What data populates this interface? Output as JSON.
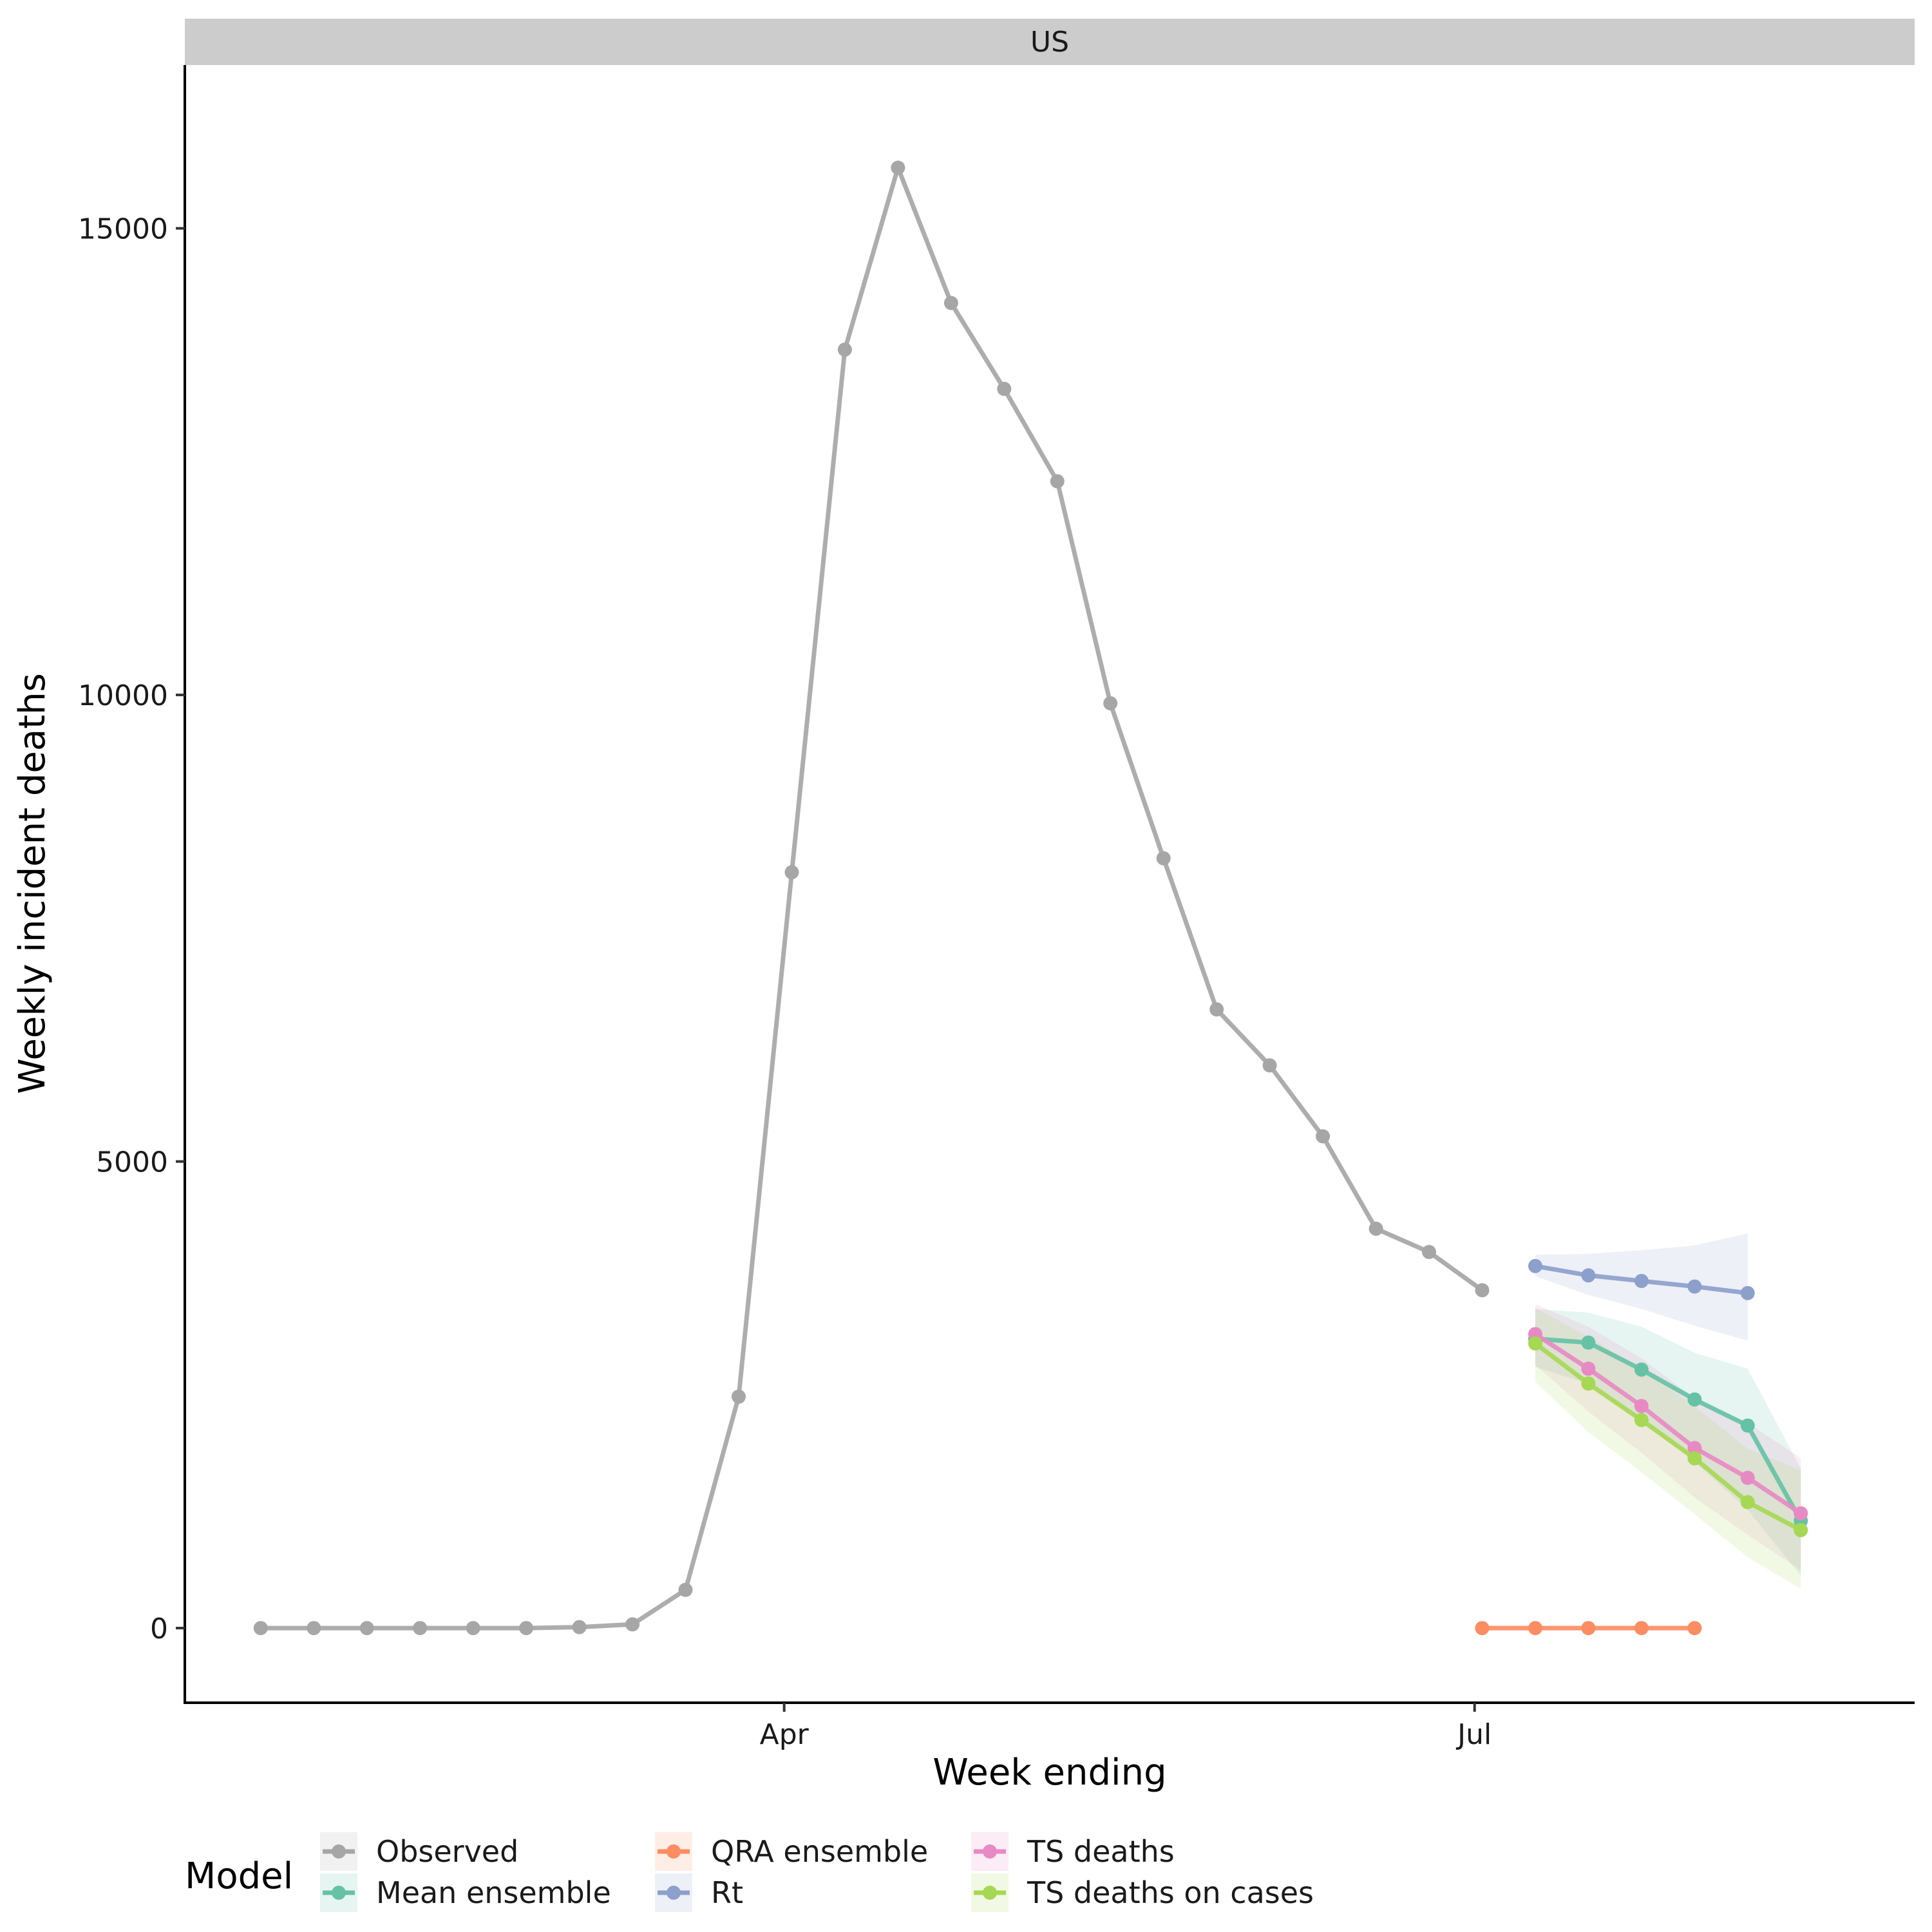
{
  "chart_data": {
    "type": "line",
    "facet_label": "US",
    "xlabel": "Week ending",
    "ylabel": "Weekly incident deaths",
    "x_ticks": [
      {
        "label": "Apr",
        "date": "2020-04-01"
      },
      {
        "label": "Jul",
        "date": "2020-07-01"
      }
    ],
    "y_ticks": [
      0,
      5000,
      10000,
      15000
    ],
    "xlim": [
      "2020-01-13",
      "2020-08-28"
    ],
    "ylim": [
      -800,
      16750
    ],
    "grid": false,
    "legend": {
      "title": "Model",
      "position": "bottom",
      "entries": [
        {
          "label": "Observed",
          "color": "#A6A6A6"
        },
        {
          "label": "Mean ensemble",
          "color": "#66C2A5"
        },
        {
          "label": "QRA ensemble",
          "color": "#FC8D62"
        },
        {
          "label": "Rt",
          "color": "#8DA0CB"
        },
        {
          "label": "TS deaths",
          "color": "#E78AC3"
        },
        {
          "label": "TS deaths on cases",
          "color": "#A6D854"
        }
      ]
    },
    "series": [
      {
        "name": "Observed",
        "color": "#A6A6A6",
        "points": [
          {
            "x": "2020-01-23",
            "y": 0
          },
          {
            "x": "2020-01-30",
            "y": 0
          },
          {
            "x": "2020-02-06",
            "y": 0
          },
          {
            "x": "2020-02-13",
            "y": 0
          },
          {
            "x": "2020-02-20",
            "y": 0
          },
          {
            "x": "2020-02-27",
            "y": 0
          },
          {
            "x": "2020-03-05",
            "y": 10
          },
          {
            "x": "2020-03-12",
            "y": 40
          },
          {
            "x": "2020-03-19",
            "y": 410
          },
          {
            "x": "2020-03-26",
            "y": 2480
          },
          {
            "x": "2020-04-02",
            "y": 8100
          },
          {
            "x": "2020-04-09",
            "y": 13700
          },
          {
            "x": "2020-04-16",
            "y": 15650
          },
          {
            "x": "2020-04-23",
            "y": 14200
          },
          {
            "x": "2020-04-30",
            "y": 13280
          },
          {
            "x": "2020-05-07",
            "y": 12290
          },
          {
            "x": "2020-05-14",
            "y": 9910
          },
          {
            "x": "2020-05-21",
            "y": 8250
          },
          {
            "x": "2020-05-28",
            "y": 6630
          },
          {
            "x": "2020-06-04",
            "y": 6030
          },
          {
            "x": "2020-06-11",
            "y": 5270
          },
          {
            "x": "2020-06-18",
            "y": 4280
          },
          {
            "x": "2020-06-25",
            "y": 4030
          },
          {
            "x": "2020-07-02",
            "y": 3620
          }
        ]
      },
      {
        "name": "Mean ensemble",
        "color": "#66C2A5",
        "points": [
          {
            "x": "2020-07-09",
            "y": 3100,
            "lower": 2800,
            "upper": 3420
          },
          {
            "x": "2020-07-16",
            "y": 3060,
            "lower": 2620,
            "upper": 3380
          },
          {
            "x": "2020-07-23",
            "y": 2770,
            "lower": 2240,
            "upper": 3230
          },
          {
            "x": "2020-07-30",
            "y": 2450,
            "lower": 1780,
            "upper": 2950
          },
          {
            "x": "2020-08-06",
            "y": 2170,
            "lower": 1270,
            "upper": 2780
          },
          {
            "x": "2020-08-13",
            "y": 1150,
            "lower": 560,
            "upper": 1710
          }
        ]
      },
      {
        "name": "QRA ensemble",
        "color": "#FC8D62",
        "points": [
          {
            "x": "2020-07-02",
            "y": 0
          },
          {
            "x": "2020-07-09",
            "y": 0
          },
          {
            "x": "2020-07-16",
            "y": 0
          },
          {
            "x": "2020-07-23",
            "y": 0
          },
          {
            "x": "2020-07-30",
            "y": 0
          }
        ]
      },
      {
        "name": "Rt",
        "color": "#8DA0CB",
        "points": [
          {
            "x": "2020-07-09",
            "y": 3880,
            "lower": 3770,
            "upper": 4000
          },
          {
            "x": "2020-07-16",
            "y": 3780,
            "lower": 3570,
            "upper": 4010
          },
          {
            "x": "2020-07-23",
            "y": 3720,
            "lower": 3420,
            "upper": 4050
          },
          {
            "x": "2020-07-30",
            "y": 3660,
            "lower": 3240,
            "upper": 4100
          },
          {
            "x": "2020-08-06",
            "y": 3590,
            "lower": 3080,
            "upper": 4230
          }
        ]
      },
      {
        "name": "TS deaths",
        "color": "#E78AC3",
        "points": [
          {
            "x": "2020-07-09",
            "y": 3150,
            "lower": 2820,
            "upper": 3470
          },
          {
            "x": "2020-07-16",
            "y": 2780,
            "lower": 2320,
            "upper": 3230
          },
          {
            "x": "2020-07-23",
            "y": 2380,
            "lower": 1880,
            "upper": 2890
          },
          {
            "x": "2020-07-30",
            "y": 1930,
            "lower": 1400,
            "upper": 2460
          },
          {
            "x": "2020-08-06",
            "y": 1610,
            "lower": 1000,
            "upper": 2200
          },
          {
            "x": "2020-08-13",
            "y": 1230,
            "lower": 620,
            "upper": 1820
          }
        ]
      },
      {
        "name": "TS deaths on cases",
        "color": "#A6D854",
        "points": [
          {
            "x": "2020-07-09",
            "y": 3050,
            "lower": 2640,
            "upper": 3430
          },
          {
            "x": "2020-07-16",
            "y": 2620,
            "lower": 2100,
            "upper": 3120
          },
          {
            "x": "2020-07-23",
            "y": 2230,
            "lower": 1670,
            "upper": 2780
          },
          {
            "x": "2020-07-30",
            "y": 1820,
            "lower": 1220,
            "upper": 2380
          },
          {
            "x": "2020-08-06",
            "y": 1350,
            "lower": 760,
            "upper": 1920
          },
          {
            "x": "2020-08-13",
            "y": 1050,
            "lower": 420,
            "upper": 1690
          }
        ]
      }
    ]
  }
}
